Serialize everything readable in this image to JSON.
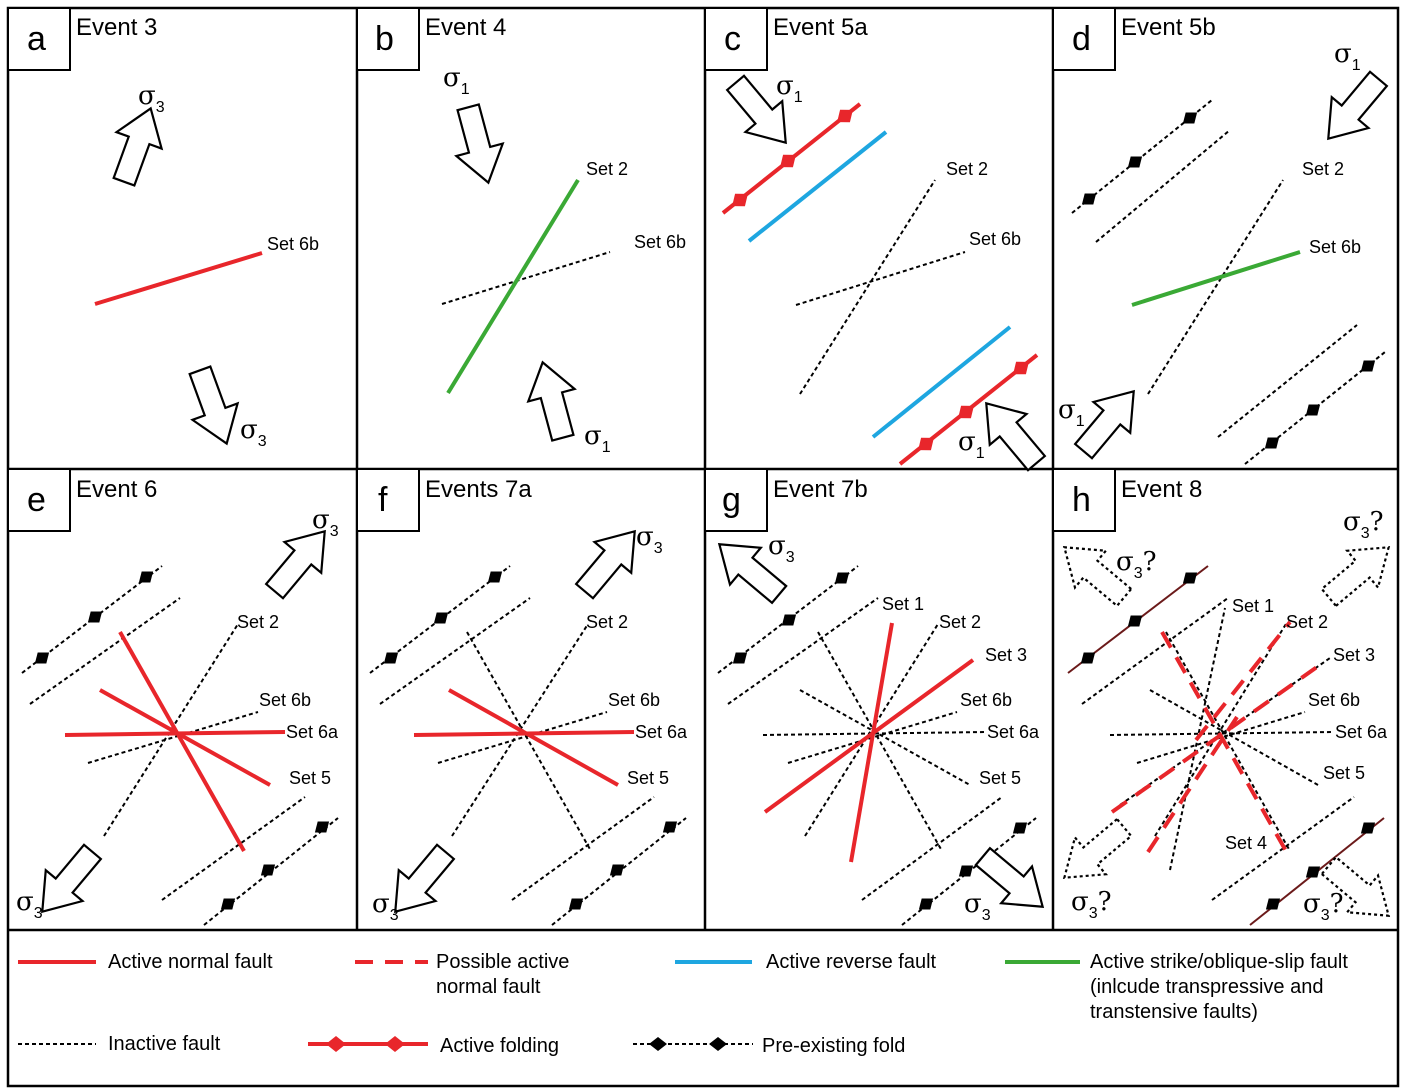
{
  "colors": {
    "normal": "#e8262b",
    "reverse": "#1ea6e0",
    "strike": "#3aa935",
    "inactive": "#000000",
    "preexisting_dark": "#6b1a1a"
  },
  "panels": [
    {
      "letter": "a",
      "title": "Event 3"
    },
    {
      "letter": "b",
      "title": "Event 4"
    },
    {
      "letter": "c",
      "title": "Event 5a"
    },
    {
      "letter": "d",
      "title": "Event 5b"
    },
    {
      "letter": "e",
      "title": "Event 6"
    },
    {
      "letter": "f",
      "title": "Events 7a"
    },
    {
      "letter": "g",
      "title": "Event 7b"
    },
    {
      "letter": "h",
      "title": "Event 8"
    }
  ],
  "labels": {
    "set1": "Set 1",
    "set2": "Set 2",
    "set3": "Set 3",
    "set4": "Set 4",
    "set5": "Set 5",
    "set6a": "Set 6a",
    "set6b": "Set 6b",
    "sigma": "σ",
    "sub1": "1",
    "sub3": "3",
    "q": "?"
  },
  "legend": {
    "normal": "Active normal fault",
    "possible1": "Possible active",
    "possible2": "normal fault",
    "reverse": "Active reverse fault",
    "strike1": "Active strike/oblique-slip fault",
    "strike2": "(inlcude transpressive and",
    "strike3": "transtensive faults)",
    "inactive": "Inactive fault",
    "folding": "Active folding",
    "preexisting": "Pre-existing fold"
  }
}
